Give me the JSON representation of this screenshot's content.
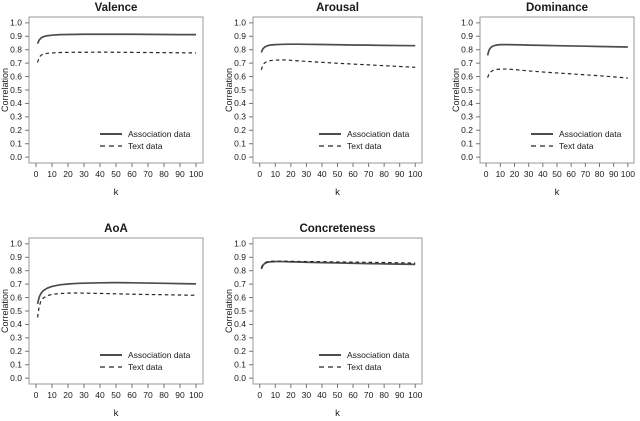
{
  "figure": {
    "background": "#ffffff",
    "x_axis_label": "k",
    "y_axis_label": "Correlation",
    "legend_labels": [
      "Association data",
      "Text data"
    ],
    "colors": {
      "solid_line": "#4d4d4d",
      "dashed_line": "#262626",
      "box_border": "#999999",
      "tick_mark": "#777777",
      "text": "#1a1a1a"
    }
  },
  "chart_data": [
    {
      "type": "line",
      "title": "Valence",
      "xlabel": "k",
      "ylabel": "Correlation",
      "xlim": [
        0,
        100
      ],
      "ylim": [
        0.0,
        1.0
      ],
      "x_ticks": [
        0,
        10,
        20,
        30,
        40,
        50,
        60,
        70,
        80,
        90,
        100
      ],
      "y_ticks": [
        0.0,
        0.1,
        0.2,
        0.3,
        0.4,
        0.5,
        0.6,
        0.7,
        0.8,
        0.9,
        1.0
      ],
      "grid": false,
      "legend_position": "bottom-right",
      "x": [
        1,
        2,
        3,
        4,
        5,
        7,
        10,
        15,
        20,
        25,
        30,
        40,
        50,
        60,
        70,
        80,
        90,
        100
      ],
      "series": [
        {
          "name": "Association data",
          "line_style": "solid",
          "values": [
            0.845,
            0.872,
            0.885,
            0.893,
            0.898,
            0.904,
            0.908,
            0.912,
            0.913,
            0.914,
            0.915,
            0.915,
            0.915,
            0.915,
            0.914,
            0.913,
            0.912,
            0.912
          ]
        },
        {
          "name": "Text data",
          "line_style": "dashed",
          "values": [
            0.705,
            0.742,
            0.757,
            0.764,
            0.768,
            0.773,
            0.776,
            0.779,
            0.78,
            0.781,
            0.781,
            0.782,
            0.781,
            0.78,
            0.779,
            0.778,
            0.777,
            0.776
          ]
        }
      ]
    },
    {
      "type": "line",
      "title": "Arousal",
      "xlabel": "k",
      "ylabel": "Correlation",
      "xlim": [
        0,
        100
      ],
      "ylim": [
        0.0,
        1.0
      ],
      "x_ticks": [
        0,
        10,
        20,
        30,
        40,
        50,
        60,
        70,
        80,
        90,
        100
      ],
      "y_ticks": [
        0.0,
        0.1,
        0.2,
        0.3,
        0.4,
        0.5,
        0.6,
        0.7,
        0.8,
        0.9,
        1.0
      ],
      "grid": false,
      "legend_position": "bottom-right",
      "x": [
        1,
        2,
        3,
        4,
        5,
        7,
        10,
        15,
        20,
        25,
        30,
        40,
        50,
        60,
        70,
        80,
        90,
        100
      ],
      "series": [
        {
          "name": "Association data",
          "line_style": "solid",
          "values": [
            0.78,
            0.806,
            0.818,
            0.825,
            0.83,
            0.835,
            0.838,
            0.84,
            0.841,
            0.841,
            0.84,
            0.839,
            0.837,
            0.835,
            0.834,
            0.832,
            0.831,
            0.83
          ]
        },
        {
          "name": "Text data",
          "line_style": "dashed",
          "values": [
            0.65,
            0.686,
            0.7,
            0.708,
            0.713,
            0.719,
            0.723,
            0.724,
            0.721,
            0.717,
            0.713,
            0.706,
            0.699,
            0.693,
            0.687,
            0.681,
            0.675,
            0.669
          ]
        }
      ]
    },
    {
      "type": "line",
      "title": "Dominance",
      "xlabel": "k",
      "ylabel": "Correlation",
      "xlim": [
        0,
        100
      ],
      "ylim": [
        0.0,
        1.0
      ],
      "x_ticks": [
        0,
        10,
        20,
        30,
        40,
        50,
        60,
        70,
        80,
        90,
        100
      ],
      "y_ticks": [
        0.0,
        0.1,
        0.2,
        0.3,
        0.4,
        0.5,
        0.6,
        0.7,
        0.8,
        0.9,
        1.0
      ],
      "grid": false,
      "legend_position": "bottom-right",
      "x": [
        1,
        2,
        3,
        4,
        5,
        7,
        10,
        15,
        20,
        25,
        30,
        40,
        50,
        60,
        70,
        80,
        90,
        100
      ],
      "series": [
        {
          "name": "Association data",
          "line_style": "solid",
          "values": [
            0.758,
            0.796,
            0.813,
            0.822,
            0.828,
            0.834,
            0.838,
            0.838,
            0.837,
            0.836,
            0.834,
            0.832,
            0.83,
            0.828,
            0.826,
            0.824,
            0.822,
            0.82
          ]
        },
        {
          "name": "Text data",
          "line_style": "dashed",
          "values": [
            0.592,
            0.62,
            0.633,
            0.641,
            0.646,
            0.652,
            0.656,
            0.656,
            0.652,
            0.647,
            0.642,
            0.634,
            0.627,
            0.62,
            0.613,
            0.606,
            0.598,
            0.589
          ]
        }
      ]
    },
    {
      "type": "line",
      "title": "AoA",
      "xlabel": "k",
      "ylabel": "Correlation",
      "xlim": [
        0,
        100
      ],
      "ylim": [
        0.0,
        1.0
      ],
      "x_ticks": [
        0,
        10,
        20,
        30,
        40,
        50,
        60,
        70,
        80,
        90,
        100
      ],
      "y_ticks": [
        0.0,
        0.1,
        0.2,
        0.3,
        0.4,
        0.5,
        0.6,
        0.7,
        0.8,
        0.9,
        1.0
      ],
      "grid": false,
      "legend_position": "bottom-right",
      "x": [
        1,
        2,
        3,
        4,
        5,
        7,
        10,
        15,
        20,
        25,
        30,
        40,
        50,
        60,
        70,
        80,
        90,
        100
      ],
      "series": [
        {
          "name": "Association data",
          "line_style": "solid",
          "values": [
            0.553,
            0.603,
            0.628,
            0.644,
            0.655,
            0.67,
            0.683,
            0.695,
            0.701,
            0.705,
            0.707,
            0.71,
            0.711,
            0.71,
            0.708,
            0.706,
            0.704,
            0.702
          ]
        },
        {
          "name": "Text data",
          "line_style": "dashed",
          "values": [
            0.452,
            0.533,
            0.57,
            0.589,
            0.6,
            0.614,
            0.624,
            0.63,
            0.633,
            0.634,
            0.633,
            0.631,
            0.628,
            0.625,
            0.623,
            0.621,
            0.619,
            0.617
          ]
        }
      ]
    },
    {
      "type": "line",
      "title": "Concreteness",
      "xlabel": "k",
      "ylabel": "Correlation",
      "xlim": [
        0,
        100
      ],
      "ylim": [
        0.0,
        1.0
      ],
      "x_ticks": [
        0,
        10,
        20,
        30,
        40,
        50,
        60,
        70,
        80,
        90,
        100
      ],
      "y_ticks": [
        0.0,
        0.1,
        0.2,
        0.3,
        0.4,
        0.5,
        0.6,
        0.7,
        0.8,
        0.9,
        1.0
      ],
      "grid": false,
      "legend_position": "bottom-right",
      "x": [
        1,
        2,
        3,
        4,
        5,
        7,
        10,
        15,
        20,
        25,
        30,
        40,
        50,
        60,
        70,
        80,
        90,
        100
      ],
      "series": [
        {
          "name": "Association data",
          "line_style": "solid",
          "values": [
            0.812,
            0.84,
            0.852,
            0.859,
            0.863,
            0.866,
            0.868,
            0.868,
            0.866,
            0.865,
            0.863,
            0.86,
            0.858,
            0.855,
            0.853,
            0.851,
            0.849,
            0.847
          ]
        },
        {
          "name": "Text data",
          "line_style": "dashed",
          "values": [
            0.82,
            0.846,
            0.857,
            0.863,
            0.867,
            0.87,
            0.871,
            0.871,
            0.87,
            0.869,
            0.868,
            0.867,
            0.865,
            0.864,
            0.862,
            0.861,
            0.859,
            0.857
          ]
        }
      ]
    }
  ]
}
